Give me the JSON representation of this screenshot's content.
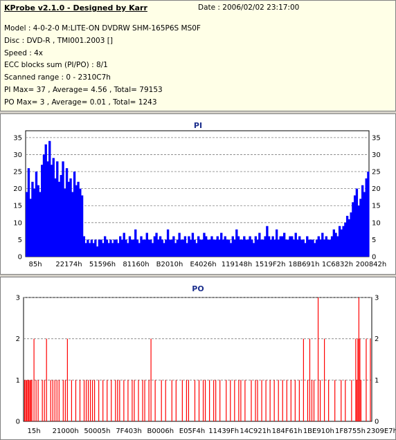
{
  "header": {
    "app_title": "KProbe v2.1.0 - Designed by Karr",
    "date": "Date : 2006/02/02 23:17:00",
    "lines": [
      "Model : 4-0-2-0 M:LITE-ON DVDRW SHM-165P6S MS0F",
      "Disc : DVD-R , TMI001.2003 []",
      "Speed : 4x",
      "ECC blocks sum (PI/PO) : 8/1",
      "Scanned range : 0 - 2310C7h",
      "PI Max= 37 , Average= 4.56 , Total= 79153",
      "PO Max= 3 , Average= 0.01 , Total= 1243"
    ]
  },
  "colors": {
    "pi": "#0000ff",
    "po": "#ff0000",
    "title": "#1a2d8c",
    "grid": "#7f7f7f"
  },
  "chart_data": [
    {
      "type": "area",
      "title": "PI",
      "ylim": [
        0,
        37
      ],
      "yticks": [
        0,
        5,
        10,
        15,
        20,
        25,
        30,
        35
      ],
      "xticks": [
        "85h",
        "22174h",
        "51596h",
        "81160h",
        "B2010h",
        "E4026h",
        "119148h",
        "1519F2h",
        "18B691h",
        "1C6832h",
        "200842h"
      ],
      "grid": true,
      "series": [
        {
          "values": [
            19,
            26,
            17,
            22,
            20,
            25,
            21,
            19,
            27,
            30,
            33,
            28,
            34,
            27,
            29,
            23,
            28,
            22,
            24,
            28,
            20,
            26,
            22,
            23,
            19,
            25,
            21,
            22,
            20,
            18,
            6,
            4,
            5,
            4,
            5,
            4,
            5,
            3,
            5,
            5,
            4,
            6,
            5,
            4,
            5,
            4,
            5,
            5,
            4,
            6,
            5,
            7,
            5,
            4,
            6,
            5,
            5,
            8,
            5,
            4,
            6,
            5,
            5,
            7,
            5,
            5,
            4,
            6,
            7,
            5,
            6,
            5,
            4,
            5,
            8,
            5,
            5,
            6,
            4,
            5,
            7,
            5,
            5,
            6,
            4,
            6,
            5,
            7,
            5,
            4,
            6,
            5,
            5,
            7,
            6,
            5,
            5,
            6,
            5,
            5,
            6,
            5,
            7,
            5,
            6,
            5,
            5,
            4,
            6,
            5,
            8,
            6,
            5,
            5,
            6,
            5,
            5,
            6,
            5,
            4,
            6,
            5,
            7,
            5,
            5,
            6,
            9,
            6,
            5,
            6,
            5,
            8,
            5,
            6,
            6,
            7,
            5,
            5,
            6,
            6,
            5,
            7,
            5,
            6,
            5,
            5,
            4,
            6,
            5,
            5,
            5,
            4,
            5,
            6,
            5,
            7,
            5,
            6,
            5,
            5,
            6,
            8,
            7,
            6,
            9,
            8,
            9,
            10,
            12,
            11,
            13,
            16,
            18,
            20,
            15,
            17,
            21,
            19,
            23,
            25
          ]
        }
      ]
    },
    {
      "type": "bar",
      "title": "PO",
      "ylim": [
        0,
        3
      ],
      "yticks": [
        0,
        1,
        2,
        3
      ],
      "xticks": [
        "15h",
        "21000h",
        "50005h",
        "7F403h",
        "B0006h",
        "E05F4h",
        "11439Fh",
        "14C921h",
        "184F61h",
        "1BE910h",
        "1F8755h",
        "2309E7h"
      ],
      "grid": true,
      "series": [
        {
          "points": [
            [
              0.3,
              1
            ],
            [
              0.6,
              1
            ],
            [
              0.9,
              1
            ],
            [
              1.2,
              1
            ],
            [
              1.5,
              1
            ],
            [
              1.8,
              1
            ],
            [
              2.1,
              1
            ],
            [
              2.4,
              1
            ],
            [
              3.0,
              2
            ],
            [
              3.6,
              1
            ],
            [
              4.2,
              1
            ],
            [
              5.4,
              1
            ],
            [
              6.0,
              1
            ],
            [
              6.6,
              2
            ],
            [
              7.8,
              1
            ],
            [
              8.4,
              1
            ],
            [
              9.0,
              1
            ],
            [
              9.6,
              1
            ],
            [
              10.2,
              1
            ],
            [
              11.4,
              1
            ],
            [
              12.0,
              1
            ],
            [
              12.6,
              2
            ],
            [
              13.8,
              1
            ],
            [
              15.0,
              1
            ],
            [
              16.2,
              1
            ],
            [
              17.4,
              1
            ],
            [
              18.0,
              1
            ],
            [
              18.6,
              1
            ],
            [
              19.2,
              1
            ],
            [
              19.8,
              1
            ],
            [
              20.4,
              1
            ],
            [
              21.6,
              1
            ],
            [
              22.8,
              1
            ],
            [
              24.0,
              1
            ],
            [
              25.2,
              1
            ],
            [
              26.4,
              1
            ],
            [
              27.0,
              1
            ],
            [
              27.6,
              1
            ],
            [
              28.8,
              1
            ],
            [
              30.0,
              1
            ],
            [
              31.2,
              1
            ],
            [
              31.8,
              1
            ],
            [
              33.0,
              1
            ],
            [
              34.2,
              1
            ],
            [
              34.8,
              1
            ],
            [
              36.0,
              1
            ],
            [
              36.6,
              2
            ],
            [
              37.8,
              1
            ],
            [
              39.6,
              1
            ],
            [
              40.8,
              1
            ],
            [
              42.6,
              1
            ],
            [
              43.8,
              1
            ],
            [
              45.6,
              1
            ],
            [
              46.8,
              1
            ],
            [
              47.4,
              1
            ],
            [
              49.2,
              1
            ],
            [
              50.4,
              1
            ],
            [
              51.6,
              1
            ],
            [
              52.2,
              1
            ],
            [
              53.4,
              1
            ],
            [
              54.6,
              1
            ],
            [
              55.2,
              1
            ],
            [
              56.4,
              1
            ],
            [
              58.2,
              1
            ],
            [
              59.4,
              1
            ],
            [
              60.6,
              1
            ],
            [
              61.8,
              1
            ],
            [
              62.4,
              1
            ],
            [
              63.6,
              1
            ],
            [
              65.4,
              1
            ],
            [
              66.6,
              1
            ],
            [
              67.2,
              1
            ],
            [
              68.4,
              1
            ],
            [
              69.6,
              1
            ],
            [
              70.8,
              1
            ],
            [
              72.0,
              1
            ],
            [
              73.2,
              1
            ],
            [
              74.4,
              1
            ],
            [
              75.6,
              1
            ],
            [
              76.8,
              1
            ],
            [
              78.0,
              1
            ],
            [
              79.2,
              1
            ],
            [
              80.4,
              2
            ],
            [
              81.6,
              1
            ],
            [
              82.2,
              2
            ],
            [
              82.8,
              1
            ],
            [
              83.4,
              1
            ],
            [
              84.6,
              3
            ],
            [
              85.2,
              1
            ],
            [
              86.4,
              2
            ],
            [
              87.6,
              1
            ],
            [
              89.4,
              1
            ],
            [
              91.2,
              1
            ],
            [
              92.4,
              1
            ],
            [
              94.2,
              1
            ],
            [
              95.4,
              2
            ],
            [
              95.7,
              1
            ],
            [
              96.0,
              2
            ],
            [
              96.3,
              3
            ],
            [
              96.6,
              2
            ],
            [
              96.9,
              1
            ],
            [
              98.4,
              2
            ],
            [
              99.6,
              2
            ]
          ]
        }
      ]
    }
  ]
}
